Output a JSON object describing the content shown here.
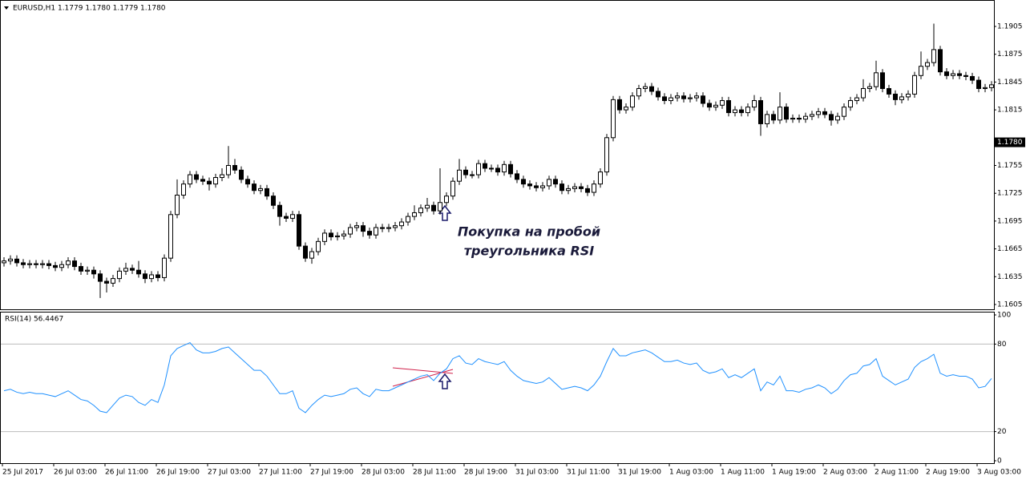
{
  "chart_data": [
    {
      "type": "candlestick",
      "title": "EURUSD,H1  1.1779 1.1780 1.1779 1.1780",
      "open": [
        1.165,
        1.1652,
        1.1654,
        1.165,
        1.1648,
        1.1649,
        1.1648,
        1.1649,
        1.1647,
        1.1645,
        1.1648,
        1.1652,
        1.1646,
        1.1641,
        1.1642,
        1.1638,
        1.163,
        1.1628,
        1.1633,
        1.1641,
        1.1644,
        1.1642,
        1.1638,
        1.1633,
        1.1637,
        1.1634,
        1.1655,
        1.1702,
        1.1723,
        1.1735,
        1.1745,
        1.174,
        1.1738,
        1.1735,
        1.1742,
        1.1745,
        1.1755,
        1.175,
        1.174,
        1.1735,
        1.1728,
        1.173,
        1.1722,
        1.1712,
        1.17,
        1.1698,
        1.1702,
        1.1668,
        1.1655,
        1.1662,
        1.1673,
        1.1682,
        1.1678,
        1.1679,
        1.1681,
        1.1688,
        1.169,
        1.1684,
        1.168,
        1.1688,
        1.1687,
        1.1688,
        1.169,
        1.1694,
        1.17,
        1.1704,
        1.1709,
        1.1712,
        1.1706,
        1.1715,
        1.1722,
        1.1738,
        1.175,
        1.1745,
        1.1745,
        1.1757,
        1.1752,
        1.1752,
        1.1748,
        1.1756,
        1.1746,
        1.174,
        1.1735,
        1.1733,
        1.1731,
        1.1733,
        1.174,
        1.1735,
        1.1728,
        1.173,
        1.1732,
        1.173,
        1.1726,
        1.1735,
        1.1748,
        1.1785,
        1.1826,
        1.1815,
        1.1818,
        1.183,
        1.1838,
        1.184,
        1.1835,
        1.1829,
        1.1825,
        1.1828,
        1.183,
        1.1827,
        1.1828,
        1.183,
        1.1822,
        1.1818,
        1.182,
        1.1825,
        1.1812,
        1.1815,
        1.1812,
        1.1818,
        1.1825,
        1.18,
        1.181,
        1.1804,
        1.1818,
        1.1805,
        1.1806,
        1.1805,
        1.1808,
        1.181,
        1.1813,
        1.181,
        1.1804,
        1.1808,
        1.1818,
        1.1825,
        1.1828,
        1.1838,
        1.184,
        1.1855,
        1.1838,
        1.1832,
        1.1826,
        1.1829,
        1.1832,
        1.1852,
        1.1862,
        1.1866,
        1.188,
        1.1856,
        1.1852,
        1.1854,
        1.1852,
        1.1851,
        1.1847,
        1.1838,
        1.1839
      ],
      "high": [
        1.1656,
        1.1658,
        1.1658,
        1.1654,
        1.1653,
        1.1653,
        1.1653,
        1.1653,
        1.1651,
        1.1652,
        1.1656,
        1.1656,
        1.165,
        1.1646,
        1.1646,
        1.1642,
        1.1634,
        1.1637,
        1.1645,
        1.165,
        1.1648,
        1.1652,
        1.1642,
        1.1641,
        1.1641,
        1.1659,
        1.1706,
        1.174,
        1.1739,
        1.1749,
        1.1749,
        1.1744,
        1.1742,
        1.1746,
        1.1752,
        1.1776,
        1.1762,
        1.1754,
        1.1744,
        1.1739,
        1.1734,
        1.1734,
        1.1726,
        1.1716,
        1.1704,
        1.1706,
        1.1706,
        1.1672,
        1.1666,
        1.1677,
        1.1686,
        1.1686,
        1.1683,
        1.1685,
        1.1692,
        1.1694,
        1.1694,
        1.1688,
        1.1692,
        1.1692,
        1.1692,
        1.1694,
        1.1698,
        1.1704,
        1.1712,
        1.1713,
        1.172,
        1.1716,
        1.1752,
        1.1726,
        1.1742,
        1.1762,
        1.1754,
        1.1749,
        1.1761,
        1.1761,
        1.1756,
        1.1756,
        1.176,
        1.176,
        1.175,
        1.1744,
        1.1739,
        1.1737,
        1.1737,
        1.1744,
        1.1744,
        1.1739,
        1.1734,
        1.1736,
        1.1736,
        1.1734,
        1.1739,
        1.1752,
        1.1789,
        1.183,
        1.183,
        1.1822,
        1.1834,
        1.1842,
        1.1844,
        1.1844,
        1.1839,
        1.1833,
        1.1832,
        1.1834,
        1.1834,
        1.1832,
        1.1834,
        1.1834,
        1.1826,
        1.1824,
        1.1829,
        1.1829,
        1.1819,
        1.1819,
        1.1822,
        1.1831,
        1.1829,
        1.1814,
        1.1814,
        1.1834,
        1.1822,
        1.181,
        1.181,
        1.1812,
        1.1814,
        1.1817,
        1.1817,
        1.1814,
        1.1812,
        1.1822,
        1.1829,
        1.1832,
        1.1848,
        1.1844,
        1.1868,
        1.1859,
        1.1842,
        1.1836,
        1.1833,
        1.1836,
        1.1856,
        1.1878,
        1.187,
        1.1908,
        1.1884,
        1.186,
        1.1858,
        1.1858,
        1.1856,
        1.1855,
        1.1851,
        1.1843,
        1.1846
      ],
      "low": [
        1.1646,
        1.1648,
        1.1646,
        1.1644,
        1.1644,
        1.1644,
        1.1644,
        1.1643,
        1.1641,
        1.1641,
        1.1644,
        1.1642,
        1.1637,
        1.1637,
        1.1633,
        1.1612,
        1.1618,
        1.1624,
        1.1629,
        1.1637,
        1.1638,
        1.1634,
        1.1628,
        1.1629,
        1.163,
        1.163,
        1.1651,
        1.1698,
        1.1719,
        1.1731,
        1.1736,
        1.1734,
        1.1728,
        1.1731,
        1.1738,
        1.1741,
        1.1746,
        1.1736,
        1.1731,
        1.1724,
        1.1724,
        1.1718,
        1.1708,
        1.169,
        1.1694,
        1.1694,
        1.1664,
        1.1651,
        1.1649,
        1.1658,
        1.1669,
        1.1674,
        1.1674,
        1.1675,
        1.1677,
        1.1684,
        1.1678,
        1.1676,
        1.1676,
        1.1683,
        1.1683,
        1.1684,
        1.1686,
        1.169,
        1.1696,
        1.17,
        1.1705,
        1.1702,
        1.1702,
        1.1711,
        1.1718,
        1.1734,
        1.1741,
        1.1741,
        1.1741,
        1.1748,
        1.1748,
        1.1744,
        1.1744,
        1.1742,
        1.1736,
        1.1731,
        1.1729,
        1.1727,
        1.1727,
        1.1729,
        1.1731,
        1.1724,
        1.1724,
        1.1726,
        1.1726,
        1.1722,
        1.1722,
        1.1731,
        1.1744,
        1.1781,
        1.1811,
        1.1811,
        1.1814,
        1.1826,
        1.1834,
        1.1831,
        1.1825,
        1.1821,
        1.1821,
        1.1824,
        1.1823,
        1.1823,
        1.1824,
        1.1818,
        1.1814,
        1.1814,
        1.1816,
        1.1808,
        1.1808,
        1.1808,
        1.1808,
        1.1814,
        1.1787,
        1.1796,
        1.18,
        1.18,
        1.1801,
        1.1801,
        1.1801,
        1.1801,
        1.1804,
        1.1806,
        1.1806,
        1.1798,
        1.18,
        1.1804,
        1.1814,
        1.1821,
        1.1824,
        1.1834,
        1.1836,
        1.1834,
        1.1828,
        1.182,
        1.1822,
        1.1825,
        1.1828,
        1.1848,
        1.1858,
        1.1862,
        1.1852,
        1.1848,
        1.1848,
        1.1848,
        1.1847,
        1.1843,
        1.1834,
        1.1834,
        1.1835
      ],
      "close": [
        1.1652,
        1.1654,
        1.165,
        1.1648,
        1.1649,
        1.1648,
        1.1649,
        1.1647,
        1.1645,
        1.1648,
        1.1652,
        1.1646,
        1.1641,
        1.1642,
        1.1638,
        1.163,
        1.1628,
        1.1633,
        1.1641,
        1.1644,
        1.1642,
        1.1638,
        1.1633,
        1.1637,
        1.1634,
        1.1655,
        1.1702,
        1.1723,
        1.1735,
        1.1745,
        1.174,
        1.1738,
        1.1735,
        1.1742,
        1.1745,
        1.1755,
        1.175,
        1.174,
        1.1735,
        1.1728,
        1.173,
        1.1722,
        1.1712,
        1.17,
        1.1698,
        1.1702,
        1.1668,
        1.1655,
        1.1662,
        1.1673,
        1.1682,
        1.1678,
        1.1679,
        1.1681,
        1.1688,
        1.169,
        1.1684,
        1.168,
        1.1688,
        1.1687,
        1.1688,
        1.169,
        1.1694,
        1.17,
        1.1704,
        1.1709,
        1.1712,
        1.1706,
        1.1715,
        1.1722,
        1.1738,
        1.175,
        1.1745,
        1.1745,
        1.1757,
        1.1752,
        1.1752,
        1.1748,
        1.1756,
        1.1746,
        1.174,
        1.1735,
        1.1733,
        1.1731,
        1.1733,
        1.174,
        1.1735,
        1.1728,
        1.173,
        1.1732,
        1.173,
        1.1726,
        1.1735,
        1.1748,
        1.1785,
        1.1826,
        1.1815,
        1.1818,
        1.183,
        1.1838,
        1.184,
        1.1835,
        1.1829,
        1.1825,
        1.1828,
        1.183,
        1.1827,
        1.1828,
        1.183,
        1.1822,
        1.1818,
        1.182,
        1.1825,
        1.1812,
        1.1815,
        1.1812,
        1.1818,
        1.1825,
        1.18,
        1.181,
        1.1804,
        1.1818,
        1.1805,
        1.1806,
        1.1805,
        1.1808,
        1.181,
        1.1813,
        1.181,
        1.1804,
        1.1808,
        1.1818,
        1.1825,
        1.1828,
        1.1838,
        1.184,
        1.1855,
        1.1838,
        1.1832,
        1.1826,
        1.1829,
        1.1832,
        1.1852,
        1.1862,
        1.1866,
        1.188,
        1.1856,
        1.1852,
        1.1854,
        1.1852,
        1.1851,
        1.1847,
        1.1838,
        1.1839,
        1.1842
      ],
      "ylim": [
        1.15998,
        1.19318
      ],
      "yticks": [
        1.1905,
        1.1875,
        1.1845,
        1.1815,
        1.1755,
        1.1725,
        1.1695,
        1.1665,
        1.1635,
        1.1605
      ],
      "current_price": {
        "value": 1.178,
        "label": "1.1780"
      },
      "annotation": [
        "Покупка на пробой",
        "треугольника RSI"
      ],
      "x_labels": [
        "25 Jul 2017",
        "26 Jul 03:00",
        "26 Jul 11:00",
        "26 Jul 19:00",
        "27 Jul 03:00",
        "27 Jul 11:00",
        "27 Jul 19:00",
        "28 Jul 03:00",
        "28 Jul 11:00",
        "28 Jul 19:00",
        "31 Jul 03:00",
        "31 Jul 11:00",
        "31 Jul 19:00",
        "1 Aug 03:00",
        "1 Aug 11:00",
        "1 Aug 19:00",
        "2 Aug 03:00",
        "2 Aug 11:00",
        "2 Aug 19:00",
        "3 Aug 03:00"
      ],
      "bull_color": "#ffffff",
      "bear_color": "#000000"
    },
    {
      "type": "line",
      "title": "RSI(14) 56.4467",
      "color": "#1e90ff",
      "values": [
        48,
        49,
        47,
        46,
        47,
        46,
        46,
        45,
        44,
        46,
        48,
        45,
        42,
        41,
        38,
        34,
        33,
        38,
        43,
        45,
        44,
        40,
        38,
        42,
        40,
        52,
        72,
        77,
        79,
        81,
        76,
        74,
        74,
        75,
        77,
        78,
        74,
        70,
        66,
        62,
        62,
        58,
        52,
        46,
        46,
        48,
        36,
        33,
        38,
        42,
        45,
        44,
        45,
        46,
        49,
        50,
        46,
        44,
        49,
        48,
        48,
        50,
        52,
        54,
        56,
        58,
        59,
        55,
        60,
        63,
        70,
        72,
        67,
        66,
        70,
        68,
        67,
        66,
        68,
        62,
        58,
        55,
        54,
        53,
        54,
        57,
        53,
        49,
        50,
        51,
        50,
        48,
        52,
        58,
        68,
        77,
        72,
        72,
        74,
        75,
        76,
        74,
        71,
        68,
        68,
        69,
        67,
        66,
        67,
        62,
        60,
        61,
        63,
        57,
        59,
        57,
        60,
        63,
        48,
        54,
        52,
        58,
        48,
        48,
        47,
        49,
        50,
        52,
        50,
        46,
        49,
        55,
        59,
        60,
        65,
        66,
        70,
        58,
        55,
        52,
        54,
        56,
        64,
        68,
        70,
        73,
        60,
        58,
        59,
        58,
        58,
        56,
        50,
        51,
        56.4467
      ],
      "ylim": [
        0,
        100
      ],
      "yticks": [
        100,
        80,
        20,
        0
      ],
      "levels": [
        80,
        20
      ]
    }
  ]
}
